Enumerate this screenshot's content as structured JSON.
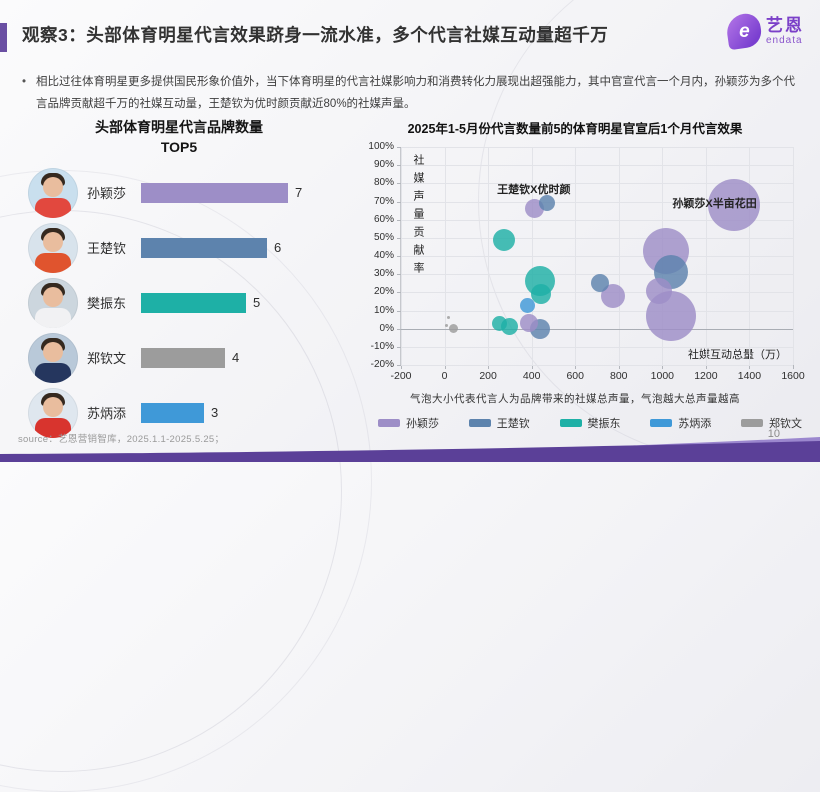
{
  "header": {
    "title": "观察3：头部体育明星代言效果跻身一流水准，多个代言社媒互动量超千万",
    "accent_color": "#6a4fa3",
    "logo": {
      "brand": "艺恩",
      "sub": "endata",
      "mark": "e",
      "color": "#7b40c8"
    }
  },
  "summary": {
    "bullet": "•",
    "text": "相比过往体育明星更多提供国民形象价值外，当下体育明星的代言社媒影响力和消费转化力展现出超强能力，其中官宣代言一个月内，孙颖莎为多个代言品牌贡献超千万的社媒互动量，王楚钦为优时颜贡献近80%的社媒声量。"
  },
  "chart_data": [
    {
      "type": "bar",
      "orientation": "horizontal",
      "title": "头部体育明星代言品牌数量",
      "subtitle": "TOP5",
      "categories": [
        "孙颖莎",
        "王楚钦",
        "樊振东",
        "郑钦文",
        "苏炳添"
      ],
      "values": [
        7,
        6,
        5,
        4,
        3
      ],
      "colors": [
        "#9d8ec7",
        "#5d83ad",
        "#1eb0a6",
        "#9c9c9c",
        "#3f99d8"
      ],
      "xlim": [
        0,
        8
      ],
      "avatar_styles": [
        {
          "bg": "#c9dfee",
          "jersey": "#e2483e"
        },
        {
          "bg": "#d8e3ec",
          "jersey": "#e0542e"
        },
        {
          "bg": "#ccd6de",
          "jersey": "#f1f1f3"
        },
        {
          "bg": "#b9c9d9",
          "jersey": "#25365e"
        },
        {
          "bg": "#dfe7ef",
          "jersey": "#d8342e"
        }
      ]
    },
    {
      "type": "scatter",
      "title": "2025年1-5月份代言数量前5的体育明星官宣后1个月代言效果",
      "xlabel": "社媒互动总量（万）",
      "ylabel": "社媒声量贡献率",
      "xlim": [
        -200,
        1600
      ],
      "xtick_step": 200,
      "ylim": [
        -20,
        100
      ],
      "ytick_step": 10,
      "grid": true,
      "size_note": "气泡大小代表代言人为品牌带来的社媒总声量，气泡越大总声量越高",
      "series": [
        {
          "name": "孙颖莎",
          "color": "#9d8ec7",
          "points": [
            {
              "x": 1330,
              "y": 68,
              "r": 26
            },
            {
              "x": 1015,
              "y": 43,
              "r": 23
            },
            {
              "x": 1040,
              "y": 7,
              "r": 25
            },
            {
              "x": 985,
              "y": 21,
              "r": 13
            },
            {
              "x": 775,
              "y": 18,
              "r": 12
            },
            {
              "x": 415,
              "y": 66,
              "r": 9.5
            },
            {
              "x": 386,
              "y": 3,
              "r": 9
            }
          ]
        },
        {
          "name": "王楚钦",
          "color": "#5d83ad",
          "points": [
            {
              "x": 470,
              "y": 69,
              "r": 8
            },
            {
              "x": 1040,
              "y": 31,
              "r": 17
            },
            {
              "x": 715,
              "y": 25,
              "r": 9
            },
            {
              "x": 437,
              "y": 0,
              "r": 10
            }
          ]
        },
        {
          "name": "樊振东",
          "color": "#1eb0a6",
          "points": [
            {
              "x": 275,
              "y": 49,
              "r": 11
            },
            {
              "x": 437,
              "y": 26,
              "r": 15
            },
            {
              "x": 445,
              "y": 19,
              "r": 10
            },
            {
              "x": 252,
              "y": 3,
              "r": 7.5
            },
            {
              "x": 298,
              "y": 1,
              "r": 8.5
            }
          ]
        },
        {
          "name": "苏炳添",
          "color": "#3f99d8",
          "points": [
            {
              "x": 382,
              "y": 13,
              "r": 7.5
            }
          ]
        },
        {
          "name": "郑钦文",
          "color": "#9c9c9c",
          "points": [
            {
              "x": 40,
              "y": 0,
              "r": 4.5
            },
            {
              "x": 17,
              "y": 6,
              "r": 1.5
            },
            {
              "x": 8,
              "y": 2,
              "r": 1.5
            }
          ]
        }
      ],
      "annotations": [
        {
          "text": "王楚钦X优时颜",
          "x": 410,
          "y": 77
        },
        {
          "text": "孙颖莎X半亩花田",
          "x": 1240,
          "y": 69
        }
      ]
    }
  ],
  "legend": [
    {
      "label": "孙颖莎",
      "color": "#9d8ec7"
    },
    {
      "label": "王楚钦",
      "color": "#5d83ad"
    },
    {
      "label": "樊振东",
      "color": "#1eb0a6"
    },
    {
      "label": "苏炳添",
      "color": "#3f99d8"
    },
    {
      "label": "郑钦文",
      "color": "#9c9c9c"
    }
  ],
  "footer": {
    "source": "source：艺恩营销智库，2025.1.1-2025.5.25；",
    "page": "10",
    "wave_color": "#5b4098",
    "wave_highlight": "#9b87ce"
  }
}
